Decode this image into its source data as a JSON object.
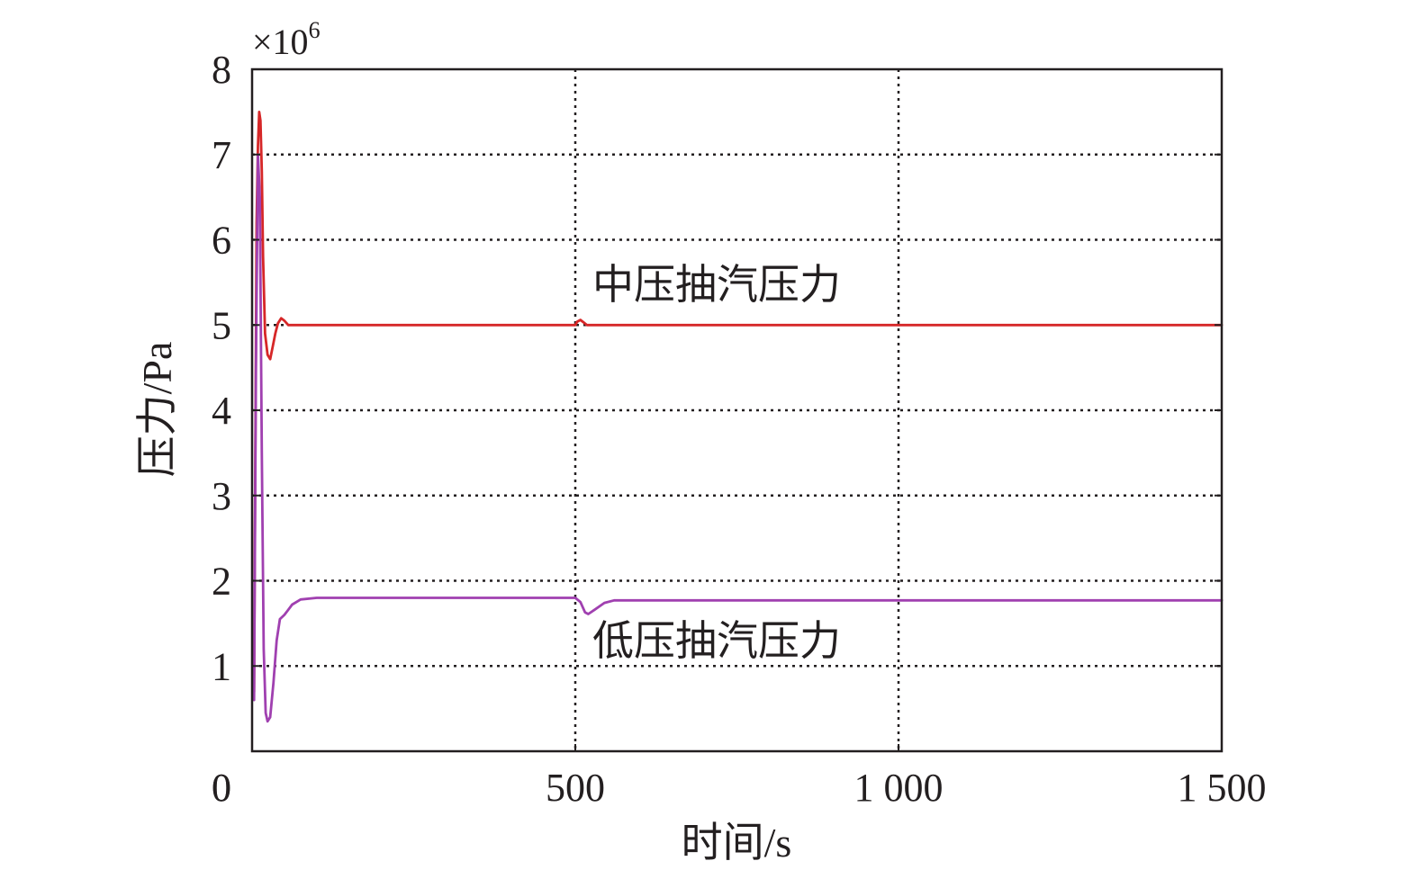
{
  "chart_data": {
    "type": "line",
    "title": "",
    "xlabel": "时间/s",
    "ylabel": "压力/Pa",
    "xlim": [
      0,
      1500
    ],
    "ylim": [
      0,
      8
    ],
    "x_ticks": [
      0,
      500,
      1000,
      1500
    ],
    "x_tick_labels": [
      "0",
      "500",
      "1 000",
      "1 500"
    ],
    "y_ticks": [
      1,
      2,
      3,
      4,
      5,
      6,
      7,
      8
    ],
    "y_tick_labels": [
      "1",
      "2",
      "3",
      "4",
      "5",
      "6",
      "7",
      "8"
    ],
    "y_origin_label": "0",
    "y_multiplier": {
      "base": "×10",
      "exponent": "6"
    },
    "grid": true,
    "legend": "none",
    "series": [
      {
        "name": "中压抽汽压力",
        "color": "#d62728",
        "points": [
          [
            3,
            0.7
          ],
          [
            5,
            3.5
          ],
          [
            7,
            6.2
          ],
          [
            9,
            7.1
          ],
          [
            11,
            7.5
          ],
          [
            13,
            7.4
          ],
          [
            15,
            6.8
          ],
          [
            17,
            5.8
          ],
          [
            20,
            4.9
          ],
          [
            24,
            4.65
          ],
          [
            28,
            4.6
          ],
          [
            32,
            4.75
          ],
          [
            36,
            4.9
          ],
          [
            40,
            5.02
          ],
          [
            45,
            5.08
          ],
          [
            50,
            5.05
          ],
          [
            56,
            5.0
          ],
          [
            65,
            5.0
          ],
          [
            100,
            5.0
          ],
          [
            500,
            5.0
          ],
          [
            503,
            5.04
          ],
          [
            508,
            5.06
          ],
          [
            513,
            5.03
          ],
          [
            518,
            5.0
          ],
          [
            540,
            5.0
          ],
          [
            1000,
            5.0
          ],
          [
            1500,
            5.0
          ]
        ]
      },
      {
        "name": "低压抽汽压力",
        "color": "#a040b0",
        "points": [
          [
            3,
            0.6
          ],
          [
            6,
            4.5
          ],
          [
            9,
            7.0
          ],
          [
            12,
            6.5
          ],
          [
            15,
            3.5
          ],
          [
            18,
            1.2
          ],
          [
            21,
            0.45
          ],
          [
            24,
            0.35
          ],
          [
            28,
            0.4
          ],
          [
            33,
            0.8
          ],
          [
            38,
            1.3
          ],
          [
            43,
            1.55
          ],
          [
            50,
            1.6
          ],
          [
            55,
            1.65
          ],
          [
            62,
            1.72
          ],
          [
            75,
            1.78
          ],
          [
            100,
            1.8
          ],
          [
            300,
            1.8
          ],
          [
            500,
            1.8
          ],
          [
            508,
            1.75
          ],
          [
            515,
            1.63
          ],
          [
            520,
            1.61
          ],
          [
            530,
            1.66
          ],
          [
            545,
            1.74
          ],
          [
            560,
            1.77
          ],
          [
            700,
            1.77
          ],
          [
            1000,
            1.77
          ],
          [
            1500,
            1.77
          ]
        ]
      }
    ],
    "annotations": [
      {
        "text": "中压抽汽压力",
        "series": 0
      },
      {
        "text": "低压抽汽压力",
        "series": 1
      }
    ]
  }
}
